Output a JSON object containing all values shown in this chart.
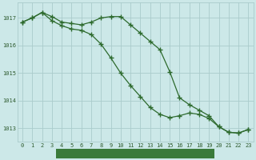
{
  "line1_x": [
    0,
    1,
    2,
    3,
    4,
    5,
    6,
    7,
    8,
    9,
    10,
    11,
    12,
    13,
    14,
    15,
    16,
    17,
    18,
    19,
    20,
    21,
    22,
    23
  ],
  "line1_y": [
    1016.85,
    1017.0,
    1017.2,
    1017.05,
    1016.85,
    1016.8,
    1016.75,
    1016.85,
    1017.0,
    1017.05,
    1017.05,
    1016.75,
    1016.45,
    1016.15,
    1015.85,
    1015.05,
    1014.1,
    1013.85,
    1013.65,
    1013.45,
    1013.05,
    1012.85,
    1012.82,
    1012.95
  ],
  "line2_x": [
    0,
    1,
    2,
    3,
    4,
    5,
    6,
    7,
    8,
    9,
    10,
    11,
    12,
    13,
    14,
    15,
    16,
    17,
    18,
    19,
    20,
    21,
    22,
    23
  ],
  "line2_y": [
    1016.85,
    1017.0,
    1017.2,
    1016.9,
    1016.72,
    1016.6,
    1016.55,
    1016.4,
    1016.05,
    1015.55,
    1015.0,
    1014.55,
    1014.15,
    1013.75,
    1013.5,
    1013.38,
    1013.45,
    1013.55,
    1013.5,
    1013.35,
    1013.05,
    1012.85,
    1012.82,
    1012.95
  ],
  "line_color": "#2d6a2d",
  "marker": "+",
  "markersize": 4,
  "markeredgewidth": 1.0,
  "linewidth": 0.9,
  "bg_color": "#cce8e8",
  "grid_color": "#aacccc",
  "xlabel_color": "#ffffff",
  "xlabel_bg": "#3a7a3a",
  "tick_color": "#2d5a2d",
  "ylim": [
    1012.5,
    1017.55
  ],
  "xlim": [
    -0.5,
    23.5
  ],
  "yticks": [
    1013,
    1014,
    1015,
    1016,
    1017
  ],
  "xticks": [
    0,
    1,
    2,
    3,
    4,
    5,
    6,
    7,
    8,
    9,
    10,
    11,
    12,
    13,
    14,
    15,
    16,
    17,
    18,
    19,
    20,
    21,
    22,
    23
  ],
  "tick_fontsize": 5.0,
  "xlabel_fontsize": 6.0
}
